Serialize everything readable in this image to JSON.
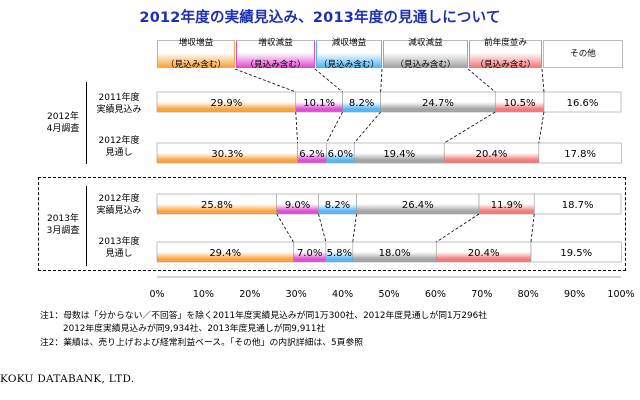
{
  "title": "2012年度の実績見込み、2013年度の見通しについて",
  "legend": [
    {
      "label": "増収増益",
      "sub": "（見込み含む）",
      "color": "#f9a540",
      "fill": "#ffffff",
      "border": "#f9a540"
    },
    {
      "label": "増収減益",
      "sub": "（見込み含む）",
      "color": "#e04fd1",
      "fill": "#ffffff",
      "border": "#e04fd1"
    },
    {
      "label": "減収増益",
      "sub": "（見込み含む）",
      "color": "#56b7f2",
      "fill": "#ffffff",
      "border": "#56b7f2"
    },
    {
      "label": "減収減益",
      "sub": "（見込み含む）",
      "color": "#a5a5a5",
      "fill": "#ffffff",
      "border": "#a5a5a5"
    },
    {
      "label": "前年度並み",
      "sub": "（見込み含む）",
      "color": "#f47b7b",
      "fill": "#ffffff",
      "border": "#f47b7b"
    },
    {
      "label": "その他",
      "sub": "",
      "color": "#cfcfcf",
      "fill": "#ffffff",
      "border": "#cfcfcf"
    }
  ],
  "groups": [
    {
      "label": "2012年\n4月調査"
    },
    {
      "label": "2013年\n3月調査"
    }
  ],
  "rows": [
    {
      "label": "2011年度\n実績見込み"
    },
    {
      "label": "2012年度\n見通し"
    },
    {
      "label": "2012年度\n実績見込み"
    },
    {
      "label": "2013年度\n見通し"
    }
  ],
  "chart_data": {
    "type": "bar",
    "orientation": "horizontal",
    "stacked": true,
    "categories": [
      "2011年度実績見込み",
      "2012年度見通し",
      "2012年度実績見込み",
      "2013年度見通し"
    ],
    "series": [
      {
        "name": "増収増益（見込み含む）",
        "values": [
          29.9,
          30.3,
          25.8,
          29.4
        ],
        "labels": [
          "29.9%",
          "30.3%",
          "25.8%",
          "29.4%"
        ],
        "color": "#f9a540"
      },
      {
        "name": "増収減益（見込み含む）",
        "values": [
          10.1,
          6.2,
          9.0,
          7.0
        ],
        "labels": [
          "10.1%",
          "6.2%",
          "9.0%",
          "7.0%"
        ],
        "color": "#e04fd1"
      },
      {
        "name": "減収増益（見込み含む）",
        "values": [
          8.2,
          6.0,
          8.2,
          5.8
        ],
        "labels": [
          "8.2%",
          "6.0%",
          "8.2%",
          "5.8%"
        ],
        "color": "#56b7f2"
      },
      {
        "name": "減収減益（見込み含む）",
        "values": [
          24.7,
          19.4,
          26.4,
          18.0
        ],
        "labels": [
          "24.7%",
          "19.4%",
          "26.4%",
          "18.0%"
        ],
        "color": "#a5a5a5"
      },
      {
        "name": "前年度並み（見込み含む）",
        "values": [
          10.5,
          20.4,
          11.9,
          20.4
        ],
        "labels": [
          "10.5%",
          "20.4%",
          "11.9%",
          "20.4%"
        ],
        "color": "#f47b7b"
      },
      {
        "name": "その他",
        "values": [
          16.6,
          17.8,
          18.7,
          19.5
        ],
        "labels": [
          "16.6%",
          "17.8%",
          "18.7%",
          "19.5%"
        ],
        "color": "#d0d0d0"
      }
    ],
    "xlim": [
      0,
      100
    ],
    "xticks": [
      "0%",
      "10%",
      "20%",
      "30%",
      "40%",
      "50%",
      "60%",
      "70%",
      "80%",
      "90%",
      "100%"
    ]
  },
  "notes": [
    "注1：母数は「分からない／不回答」を除く2011年度実績見込みが同1万300社、2012年度見通しが同1万296社",
    "2012年度実績見込みが同9,934社、2013年度見通しが同9,911社",
    "注2：業績は、売り上げおよび経常利益ベース。「その他」の内訳詳細は、5頁参照"
  ],
  "footer": "KOKU DATABANK, LTD."
}
